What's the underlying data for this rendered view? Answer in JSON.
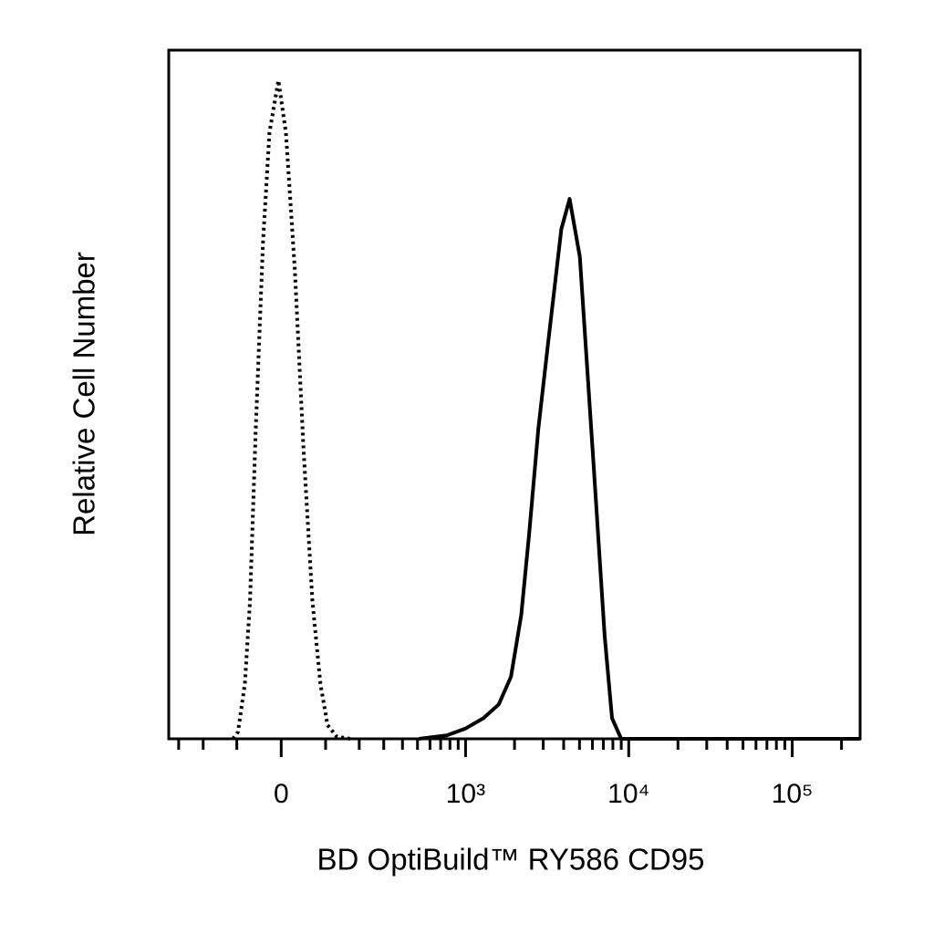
{
  "chart_data": {
    "type": "histogram-overlay",
    "xlabel": "BD OptiBuild™ RY586 CD95",
    "ylabel": "Relative Cell Number",
    "xscale": "biexponential",
    "xlim": [
      -350,
      260000
    ],
    "ylim": [
      0,
      100
    ],
    "xticks": [
      0,
      {
        "value": 1000,
        "label": "10³"
      },
      {
        "value": 10000,
        "label": "10⁴"
      },
      {
        "value": 100000,
        "label": "10⁵"
      }
    ],
    "xminorticks": [
      -300,
      -200,
      -100,
      100,
      200,
      300,
      400,
      500,
      600,
      700,
      800,
      900,
      2000,
      3000,
      4000,
      5000,
      6000,
      7000,
      8000,
      9000,
      20000,
      30000,
      40000,
      50000,
      60000,
      70000,
      80000,
      90000,
      200000
    ],
    "series": [
      {
        "color": "#000000",
        "dash": "dotted",
        "x": [
          -110,
          -97,
          -80,
          -68,
          -55,
          -39,
          -25,
          -6,
          10,
          29,
          48,
          68,
          87,
          105,
          130,
          170
        ],
        "values": [
          0,
          1,
          8,
          20,
          45,
          72,
          88,
          95.6,
          88,
          68,
          42,
          20,
          8,
          2,
          0.3,
          0
        ]
      },
      {
        "color": "#000000",
        "dash": "solid",
        "x": [
          511,
          764,
          1000,
          1289,
          1600,
          1902,
          2200,
          2464,
          2800,
          3195,
          3870,
          4350,
          5020,
          6090,
          7120,
          7900,
          9000,
          260000
        ],
        "values": [
          0,
          0.5,
          1.5,
          3,
          5,
          9,
          18,
          30,
          45,
          57,
          74,
          78.4,
          70,
          40,
          15,
          3,
          0,
          0
        ]
      }
    ]
  }
}
